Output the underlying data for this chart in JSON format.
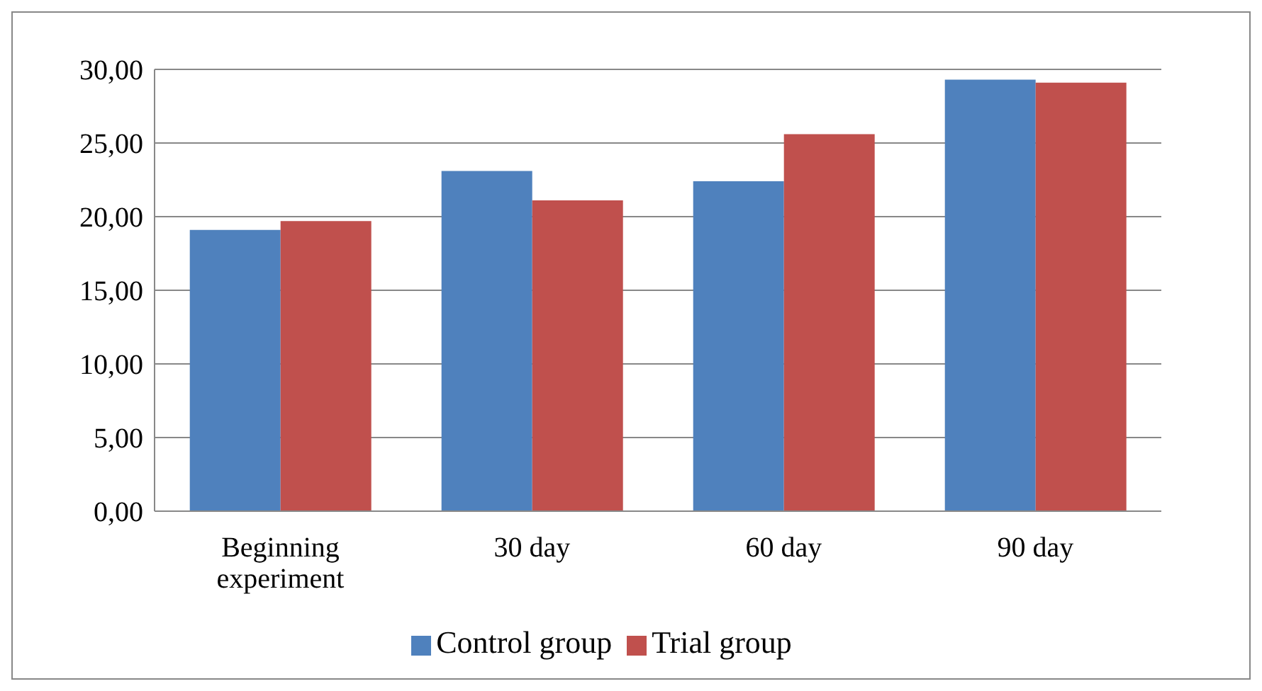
{
  "chart_data": {
    "type": "bar",
    "categories": [
      "Beginning experiment",
      "30 day",
      "60 day",
      "90 day"
    ],
    "series": [
      {
        "name": "Control group",
        "color": "#4f81bd",
        "values": [
          19.1,
          23.1,
          22.4,
          29.3
        ]
      },
      {
        "name": "Trial group",
        "color": "#c0504d",
        "values": [
          19.7,
          21.1,
          25.6,
          29.1
        ]
      }
    ],
    "ylim": [
      0,
      30
    ],
    "yticks": [
      {
        "value": 0,
        "label": "0,00"
      },
      {
        "value": 5,
        "label": "5,00"
      },
      {
        "value": 10,
        "label": "10,00"
      },
      {
        "value": 15,
        "label": "15,00"
      },
      {
        "value": 20,
        "label": "20,00"
      },
      {
        "value": 25,
        "label": "25,00"
      },
      {
        "value": 30,
        "label": "30,00"
      }
    ],
    "grid": "y",
    "legend": "bottom"
  }
}
